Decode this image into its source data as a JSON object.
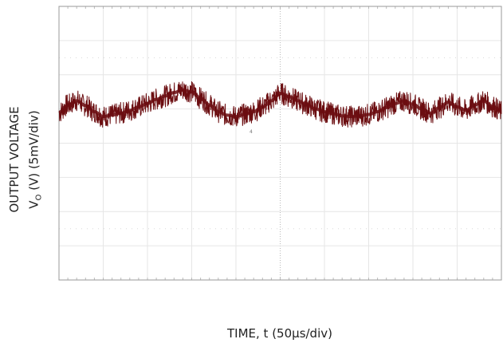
{
  "chart_data": {
    "type": "line",
    "title": "",
    "xlabel": "TIME, t (50µs/div)",
    "ylabel_line1": "OUTPUT VOLTAGE",
    "ylabel_line2_prefix": "V",
    "ylabel_line2_sub": "O",
    "ylabel_line2_suffix": " (V) (5mV/div)",
    "x_divisions": 10,
    "y_divisions": 8,
    "xlim": [
      0,
      500
    ],
    "ylim": [
      -20,
      20
    ],
    "x_unit": "µs",
    "y_unit": "mV",
    "grid": true,
    "ground_marker": "4",
    "trace_color": "#6b0d10",
    "series": [
      {
        "x": [
          0,
          10,
          20,
          30,
          40,
          50,
          60,
          70,
          80,
          90,
          100,
          110,
          120,
          130,
          140,
          150,
          160,
          170,
          180,
          190,
          200,
          210,
          220,
          230,
          240,
          250,
          260,
          270,
          280,
          290,
          300,
          310,
          320,
          330,
          340,
          350,
          360,
          370,
          380,
          390,
          400,
          410,
          420,
          430,
          440,
          450,
          460,
          470,
          480,
          490,
          500
        ],
        "y": [
          4.5,
          5.6,
          6.2,
          5.5,
          4.6,
          3.9,
          4.1,
          4.4,
          4.8,
          5.3,
          5.8,
          6.4,
          6.9,
          7.4,
          7.8,
          7.5,
          6.6,
          5.6,
          4.6,
          4.1,
          3.9,
          4.2,
          4.6,
          5.3,
          6.2,
          7.3,
          6.8,
          6.2,
          5.6,
          5.0,
          4.6,
          4.3,
          4.0,
          3.9,
          4.0,
          4.2,
          4.6,
          5.2,
          5.8,
          6.2,
          5.7,
          5.0,
          4.4,
          5.2,
          6.0,
          5.3,
          4.8,
          5.6,
          6.2,
          5.4,
          4.6
        ]
      }
    ],
    "noise_band_mv": 1.6
  }
}
